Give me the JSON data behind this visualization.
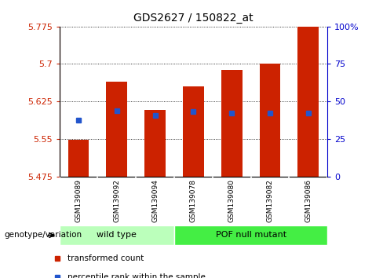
{
  "title": "GDS2627 / 150822_at",
  "samples": [
    "GSM139089",
    "GSM139092",
    "GSM139094",
    "GSM139078",
    "GSM139080",
    "GSM139082",
    "GSM139086"
  ],
  "bar_bottoms": [
    5.475,
    5.475,
    5.475,
    5.475,
    5.475,
    5.475,
    5.475
  ],
  "bar_tops": [
    5.548,
    5.665,
    5.608,
    5.655,
    5.688,
    5.7,
    5.775
  ],
  "percentile_values": [
    5.587,
    5.607,
    5.597,
    5.605,
    5.602,
    5.602,
    5.602
  ],
  "ylim_left": [
    5.475,
    5.775
  ],
  "ylim_right": [
    0,
    100
  ],
  "yticks_left": [
    5.475,
    5.55,
    5.625,
    5.7,
    5.775
  ],
  "ytick_labels_left": [
    "5.475",
    "5.55",
    "5.625",
    "5.7",
    "5.775"
  ],
  "yticks_right": [
    0,
    25,
    50,
    75,
    100
  ],
  "ytick_labels_right": [
    "0",
    "25",
    "50",
    "75",
    "100%"
  ],
  "bar_color": "#cc2200",
  "percentile_color": "#2255cc",
  "groups": [
    {
      "label": "wild type",
      "start": 0,
      "end": 3,
      "color": "#bbffbb"
    },
    {
      "label": "POF null mutant",
      "start": 3,
      "end": 7,
      "color": "#44ee44"
    }
  ],
  "group_label_prefix": "genotype/variation",
  "legend_items": [
    {
      "label": "transformed count",
      "color": "#cc2200"
    },
    {
      "label": "percentile rank within the sample",
      "color": "#2255cc"
    }
  ],
  "bg_color": "#ffffff",
  "grid_color": "#000000",
  "axis_color_left": "#cc2200",
  "axis_color_right": "#0000cc",
  "tick_label_area_color": "#cccccc",
  "bar_width": 0.55
}
